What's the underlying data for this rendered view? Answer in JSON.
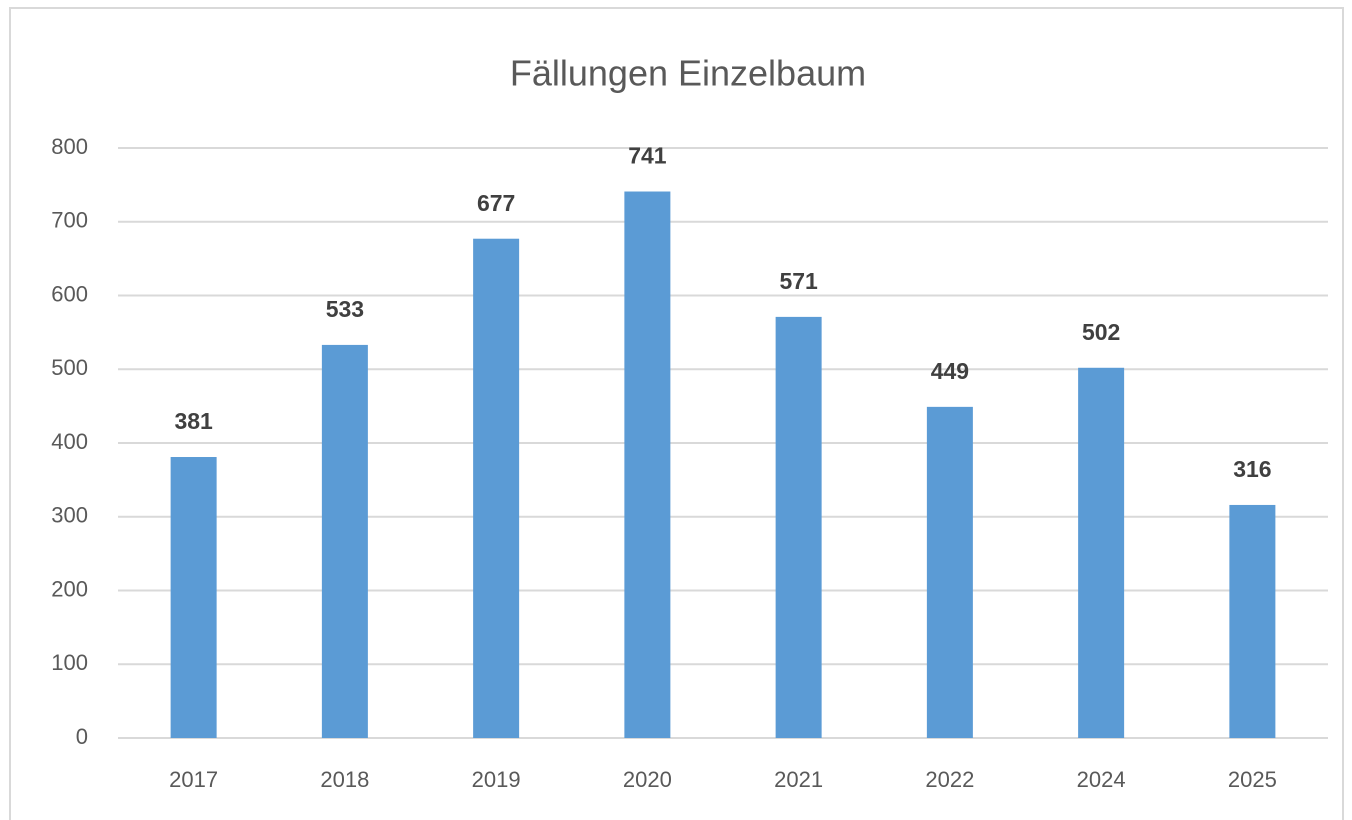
{
  "chart_data": {
    "type": "bar",
    "title": "Fällungen Einzelbaum",
    "categories": [
      "2017",
      "2018",
      "2019",
      "2020",
      "2021",
      "2022",
      "2024",
      "2025"
    ],
    "values": [
      381,
      533,
      677,
      741,
      571,
      449,
      502,
      316
    ],
    "color": "#5b9bd5",
    "ylim": [
      0,
      800
    ],
    "yticks": [
      0,
      100,
      200,
      300,
      400,
      500,
      600,
      700,
      800
    ],
    "grid": true
  }
}
